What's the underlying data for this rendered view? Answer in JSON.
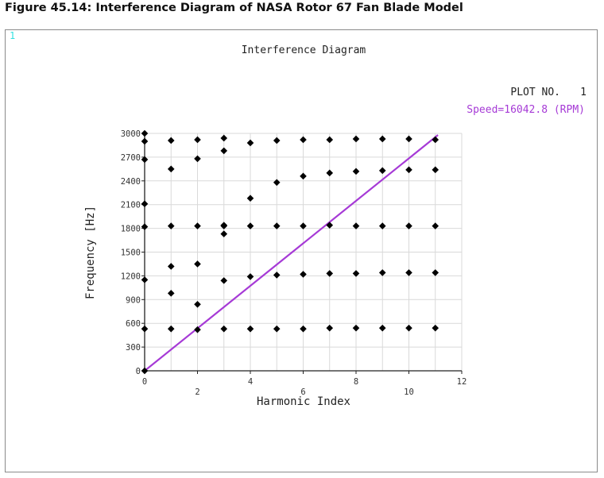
{
  "figure": {
    "caption": "Figure 45.14: Interference Diagram of NASA Rotor 67 Fan Blade Model",
    "window_number": "1"
  },
  "plot_info": {
    "plot_no_label": "PLOT NO.",
    "plot_no_value": "1",
    "speed_text": "Speed=16042.8 (RPM)",
    "speed_color": "#a63ad6"
  },
  "chart_data": {
    "type": "scatter",
    "title": "Interference Diagram",
    "xlabel": "Harmonic Index",
    "ylabel": "Frequency [Hz]",
    "xlim": [
      0,
      12
    ],
    "ylim": [
      0,
      3000
    ],
    "xticks": [
      "0",
      "2",
      "4",
      "6",
      "8",
      "10",
      "12"
    ],
    "xtick_values": [
      0,
      2,
      4,
      6,
      8,
      10,
      12
    ],
    "yticks": [
      "0",
      "300",
      "600",
      "900",
      "1200",
      "1500",
      "1800",
      "2100",
      "2400",
      "2700",
      "3000"
    ],
    "ytick_values": [
      0,
      300,
      600,
      900,
      1200,
      1500,
      1800,
      2100,
      2400,
      2700,
      3000
    ],
    "grid": true,
    "marker_color": "#000000",
    "series": [
      {
        "x": [
          0,
          0,
          0,
          0,
          0,
          0,
          0,
          0,
          1,
          1,
          1,
          1,
          1,
          1,
          2,
          2,
          2,
          2,
          2,
          2,
          3,
          3,
          3,
          3,
          3,
          3,
          3,
          4,
          4,
          4,
          4,
          4,
          5,
          5,
          5,
          5,
          5,
          6,
          6,
          6,
          6,
          6,
          7,
          7,
          7,
          7,
          7,
          8,
          8,
          8,
          8,
          8,
          9,
          9,
          9,
          9,
          9,
          10,
          10,
          10,
          10,
          10,
          11,
          11,
          11,
          11,
          11
        ],
        "y": [
          0,
          530,
          1150,
          1820,
          2110,
          2670,
          2900,
          3000,
          530,
          980,
          1320,
          1830,
          2550,
          2910,
          520,
          840,
          1350,
          1830,
          2680,
          2920,
          530,
          1140,
          1730,
          1840,
          2780,
          2940,
          1830,
          530,
          1190,
          1830,
          2180,
          2880,
          530,
          1210,
          1830,
          2380,
          2910,
          530,
          1220,
          1830,
          2460,
          2920,
          540,
          1230,
          1840,
          2500,
          2920,
          540,
          1230,
          1830,
          2520,
          2930,
          540,
          1240,
          1830,
          2530,
          2930,
          540,
          1240,
          1830,
          2540,
          2930,
          540,
          1240,
          1830,
          2540,
          2920
        ]
      }
    ],
    "speed_line": {
      "x": [
        0,
        11.1
      ],
      "y": [
        0,
        2980
      ],
      "color": "#a63ad6"
    }
  }
}
